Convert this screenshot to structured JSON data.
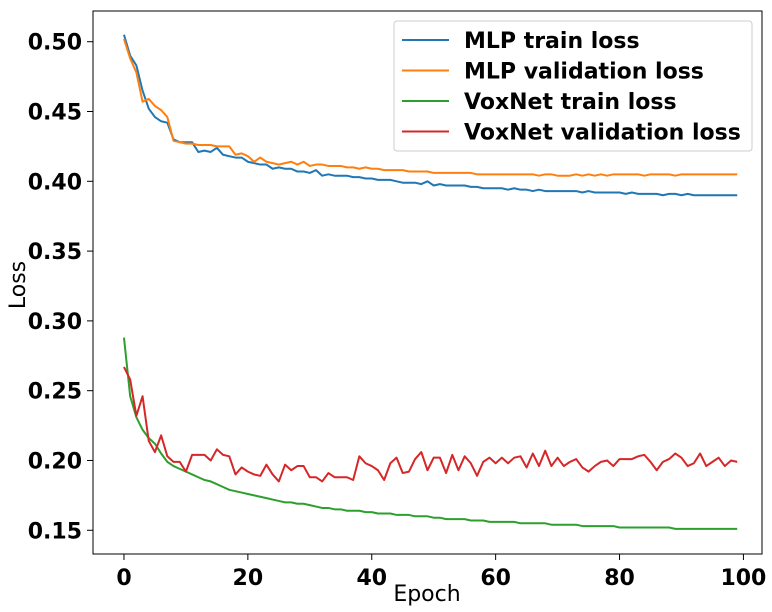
{
  "chart_data": {
    "type": "line",
    "xlabel": "Epoch",
    "ylabel": "Loss",
    "xlim": [
      -5,
      103
    ],
    "ylim": [
      0.133,
      0.522
    ],
    "xticks": [
      0,
      20,
      40,
      60,
      80,
      100
    ],
    "yticks": [
      0.15,
      0.2,
      0.25,
      0.3,
      0.35,
      0.4,
      0.45,
      0.5
    ],
    "xtick_labels": [
      "0",
      "20",
      "40",
      "60",
      "80",
      "100"
    ],
    "ytick_labels": [
      "0.15",
      "0.20",
      "0.25",
      "0.30",
      "0.35",
      "0.40",
      "0.45",
      "0.50"
    ],
    "grid": false,
    "legend_position": "top-right",
    "series": [
      {
        "name": "MLP train loss",
        "color": "#1f77b4",
        "values": [
          0.505,
          0.49,
          0.483,
          0.465,
          0.452,
          0.446,
          0.443,
          0.442,
          0.43,
          0.428,
          0.428,
          0.428,
          0.421,
          0.422,
          0.421,
          0.424,
          0.419,
          0.418,
          0.417,
          0.417,
          0.414,
          0.413,
          0.412,
          0.412,
          0.409,
          0.41,
          0.409,
          0.409,
          0.407,
          0.407,
          0.406,
          0.408,
          0.404,
          0.405,
          0.404,
          0.404,
          0.404,
          0.403,
          0.403,
          0.402,
          0.402,
          0.401,
          0.401,
          0.401,
          0.4,
          0.399,
          0.399,
          0.399,
          0.398,
          0.4,
          0.397,
          0.398,
          0.397,
          0.397,
          0.397,
          0.397,
          0.396,
          0.396,
          0.395,
          0.395,
          0.395,
          0.395,
          0.394,
          0.395,
          0.394,
          0.394,
          0.393,
          0.394,
          0.393,
          0.393,
          0.393,
          0.393,
          0.393,
          0.393,
          0.392,
          0.393,
          0.392,
          0.392,
          0.392,
          0.392,
          0.392,
          0.391,
          0.392,
          0.391,
          0.391,
          0.391,
          0.391,
          0.39,
          0.391,
          0.391,
          0.39,
          0.391,
          0.39,
          0.39,
          0.39,
          0.39,
          0.39,
          0.39,
          0.39,
          0.39
        ]
      },
      {
        "name": "MLP validation loss",
        "color": "#ff7f0e",
        "values": [
          0.502,
          0.488,
          0.478,
          0.457,
          0.459,
          0.454,
          0.451,
          0.446,
          0.429,
          0.428,
          0.427,
          0.427,
          0.426,
          0.426,
          0.426,
          0.425,
          0.425,
          0.425,
          0.419,
          0.42,
          0.418,
          0.414,
          0.417,
          0.414,
          0.413,
          0.412,
          0.413,
          0.414,
          0.412,
          0.414,
          0.411,
          0.412,
          0.412,
          0.411,
          0.411,
          0.411,
          0.41,
          0.41,
          0.409,
          0.41,
          0.409,
          0.409,
          0.408,
          0.408,
          0.408,
          0.408,
          0.407,
          0.407,
          0.407,
          0.407,
          0.406,
          0.406,
          0.406,
          0.406,
          0.406,
          0.406,
          0.406,
          0.405,
          0.405,
          0.405,
          0.405,
          0.405,
          0.405,
          0.405,
          0.405,
          0.405,
          0.405,
          0.404,
          0.405,
          0.405,
          0.404,
          0.404,
          0.404,
          0.405,
          0.404,
          0.405,
          0.404,
          0.405,
          0.404,
          0.405,
          0.405,
          0.405,
          0.405,
          0.405,
          0.404,
          0.405,
          0.405,
          0.405,
          0.405,
          0.404,
          0.405,
          0.405,
          0.405,
          0.405,
          0.405,
          0.405,
          0.405,
          0.405,
          0.405,
          0.405
        ]
      },
      {
        "name": "VoxNet train loss",
        "color": "#2ca02c",
        "values": [
          0.288,
          0.246,
          0.231,
          0.222,
          0.216,
          0.212,
          0.205,
          0.199,
          0.196,
          0.194,
          0.192,
          0.19,
          0.188,
          0.186,
          0.185,
          0.183,
          0.181,
          0.179,
          0.178,
          0.177,
          0.176,
          0.175,
          0.174,
          0.173,
          0.172,
          0.171,
          0.17,
          0.17,
          0.169,
          0.169,
          0.168,
          0.167,
          0.166,
          0.166,
          0.165,
          0.165,
          0.164,
          0.164,
          0.164,
          0.163,
          0.163,
          0.162,
          0.162,
          0.162,
          0.161,
          0.161,
          0.161,
          0.16,
          0.16,
          0.16,
          0.159,
          0.159,
          0.158,
          0.158,
          0.158,
          0.158,
          0.157,
          0.157,
          0.157,
          0.156,
          0.156,
          0.156,
          0.156,
          0.156,
          0.155,
          0.155,
          0.155,
          0.155,
          0.155,
          0.154,
          0.154,
          0.154,
          0.154,
          0.154,
          0.153,
          0.153,
          0.153,
          0.153,
          0.153,
          0.153,
          0.152,
          0.152,
          0.152,
          0.152,
          0.152,
          0.152,
          0.152,
          0.152,
          0.152,
          0.151,
          0.151,
          0.151,
          0.151,
          0.151,
          0.151,
          0.151,
          0.151,
          0.151,
          0.151,
          0.151
        ]
      },
      {
        "name": "VoxNet validation loss",
        "color": "#d62728",
        "values": [
          0.267,
          0.258,
          0.232,
          0.246,
          0.214,
          0.206,
          0.218,
          0.203,
          0.199,
          0.199,
          0.192,
          0.204,
          0.204,
          0.204,
          0.2,
          0.208,
          0.204,
          0.203,
          0.19,
          0.195,
          0.192,
          0.19,
          0.189,
          0.197,
          0.19,
          0.185,
          0.197,
          0.193,
          0.196,
          0.196,
          0.188,
          0.188,
          0.185,
          0.191,
          0.188,
          0.188,
          0.188,
          0.186,
          0.203,
          0.198,
          0.196,
          0.193,
          0.186,
          0.198,
          0.202,
          0.191,
          0.192,
          0.201,
          0.206,
          0.193,
          0.202,
          0.202,
          0.191,
          0.204,
          0.193,
          0.203,
          0.198,
          0.189,
          0.199,
          0.202,
          0.198,
          0.202,
          0.198,
          0.202,
          0.203,
          0.195,
          0.205,
          0.196,
          0.207,
          0.196,
          0.202,
          0.196,
          0.199,
          0.201,
          0.195,
          0.192,
          0.196,
          0.199,
          0.2,
          0.196,
          0.201,
          0.201,
          0.201,
          0.203,
          0.204,
          0.199,
          0.193,
          0.199,
          0.201,
          0.205,
          0.202,
          0.196,
          0.198,
          0.205,
          0.196,
          0.199,
          0.202,
          0.196,
          0.2,
          0.199
        ]
      }
    ]
  }
}
